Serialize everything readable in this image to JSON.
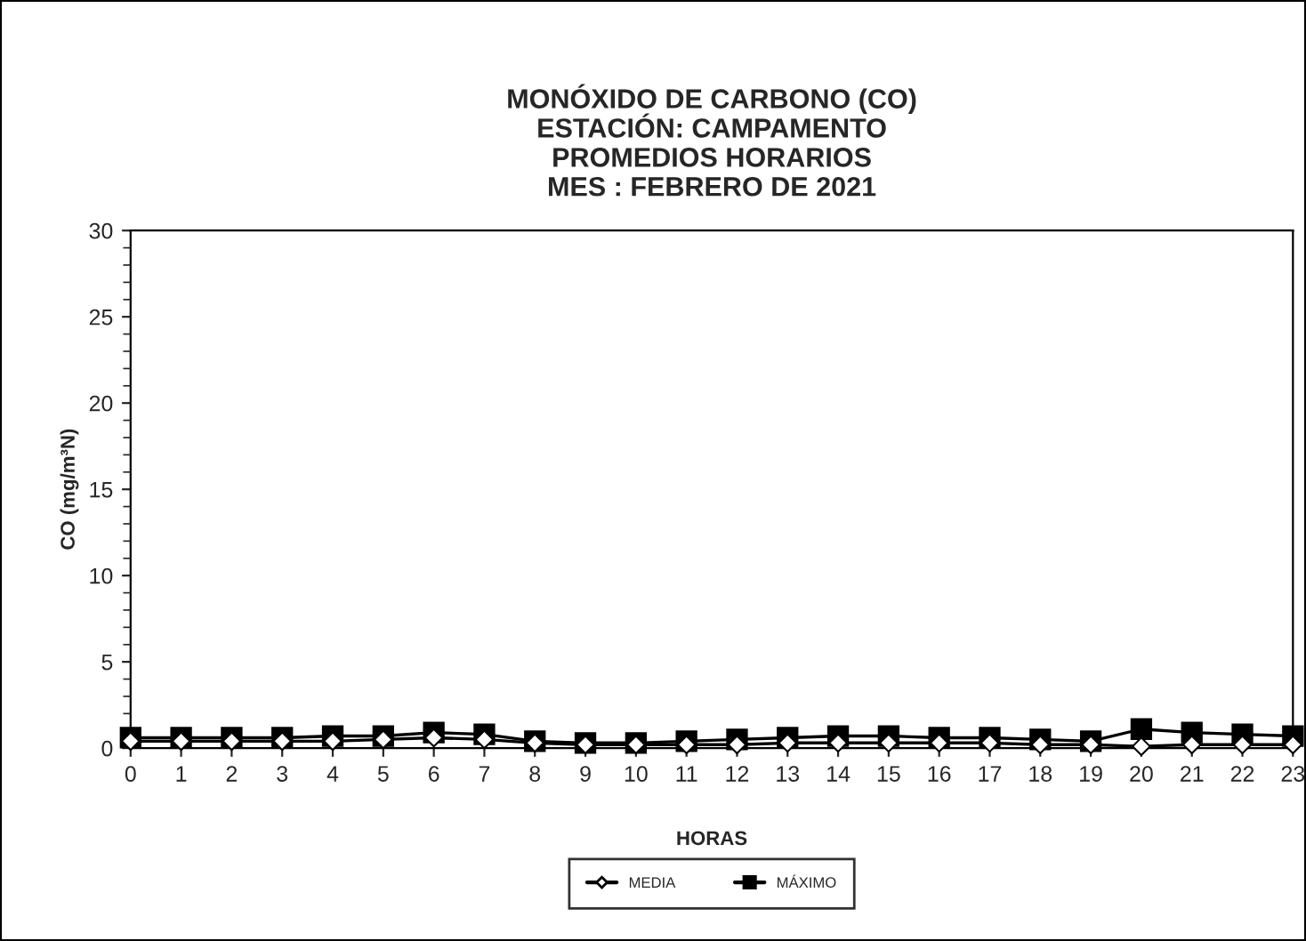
{
  "chart_data": {
    "type": "line",
    "title": "MONÓXIDO DE CARBONO (CO)\nESTACIÓN: CAMPAMENTO\nPROMEDIOS HORARIOS\nMES : FEBRERO DE 2021",
    "xlabel": "HORAS",
    "ylabel": "CO (mg/m³N)",
    "x": [
      0,
      1,
      2,
      3,
      4,
      5,
      6,
      7,
      8,
      9,
      10,
      11,
      12,
      13,
      14,
      15,
      16,
      17,
      18,
      19,
      20,
      21,
      22,
      23
    ],
    "series": [
      {
        "name": "MEDIA",
        "color": "#000000",
        "marker": "diamond",
        "values": [
          0.4,
          0.4,
          0.4,
          0.4,
          0.4,
          0.5,
          0.6,
          0.5,
          0.3,
          0.2,
          0.2,
          0.2,
          0.2,
          0.3,
          0.3,
          0.3,
          0.3,
          0.3,
          0.2,
          0.2,
          0.1,
          0.2,
          0.2,
          0.2
        ]
      },
      {
        "name": "MÁXIMO",
        "color": "#000000",
        "marker": "square",
        "values": [
          0.6,
          0.6,
          0.6,
          0.6,
          0.7,
          0.7,
          0.9,
          0.8,
          0.4,
          0.3,
          0.3,
          0.4,
          0.5,
          0.6,
          0.7,
          0.7,
          0.6,
          0.6,
          0.5,
          0.4,
          1.1,
          0.9,
          0.8,
          0.7
        ]
      }
    ],
    "xlim": [
      0,
      23
    ],
    "xticks": [
      0,
      1,
      2,
      3,
      4,
      5,
      6,
      7,
      8,
      9,
      10,
      11,
      12,
      13,
      14,
      15,
      16,
      17,
      18,
      19,
      20,
      21,
      22,
      23
    ],
    "ylim": [
      0,
      30
    ],
    "yticks": [
      0,
      5,
      10,
      15,
      20,
      25,
      30
    ],
    "grid": false,
    "legend": "bottom",
    "line_style": "solid"
  }
}
